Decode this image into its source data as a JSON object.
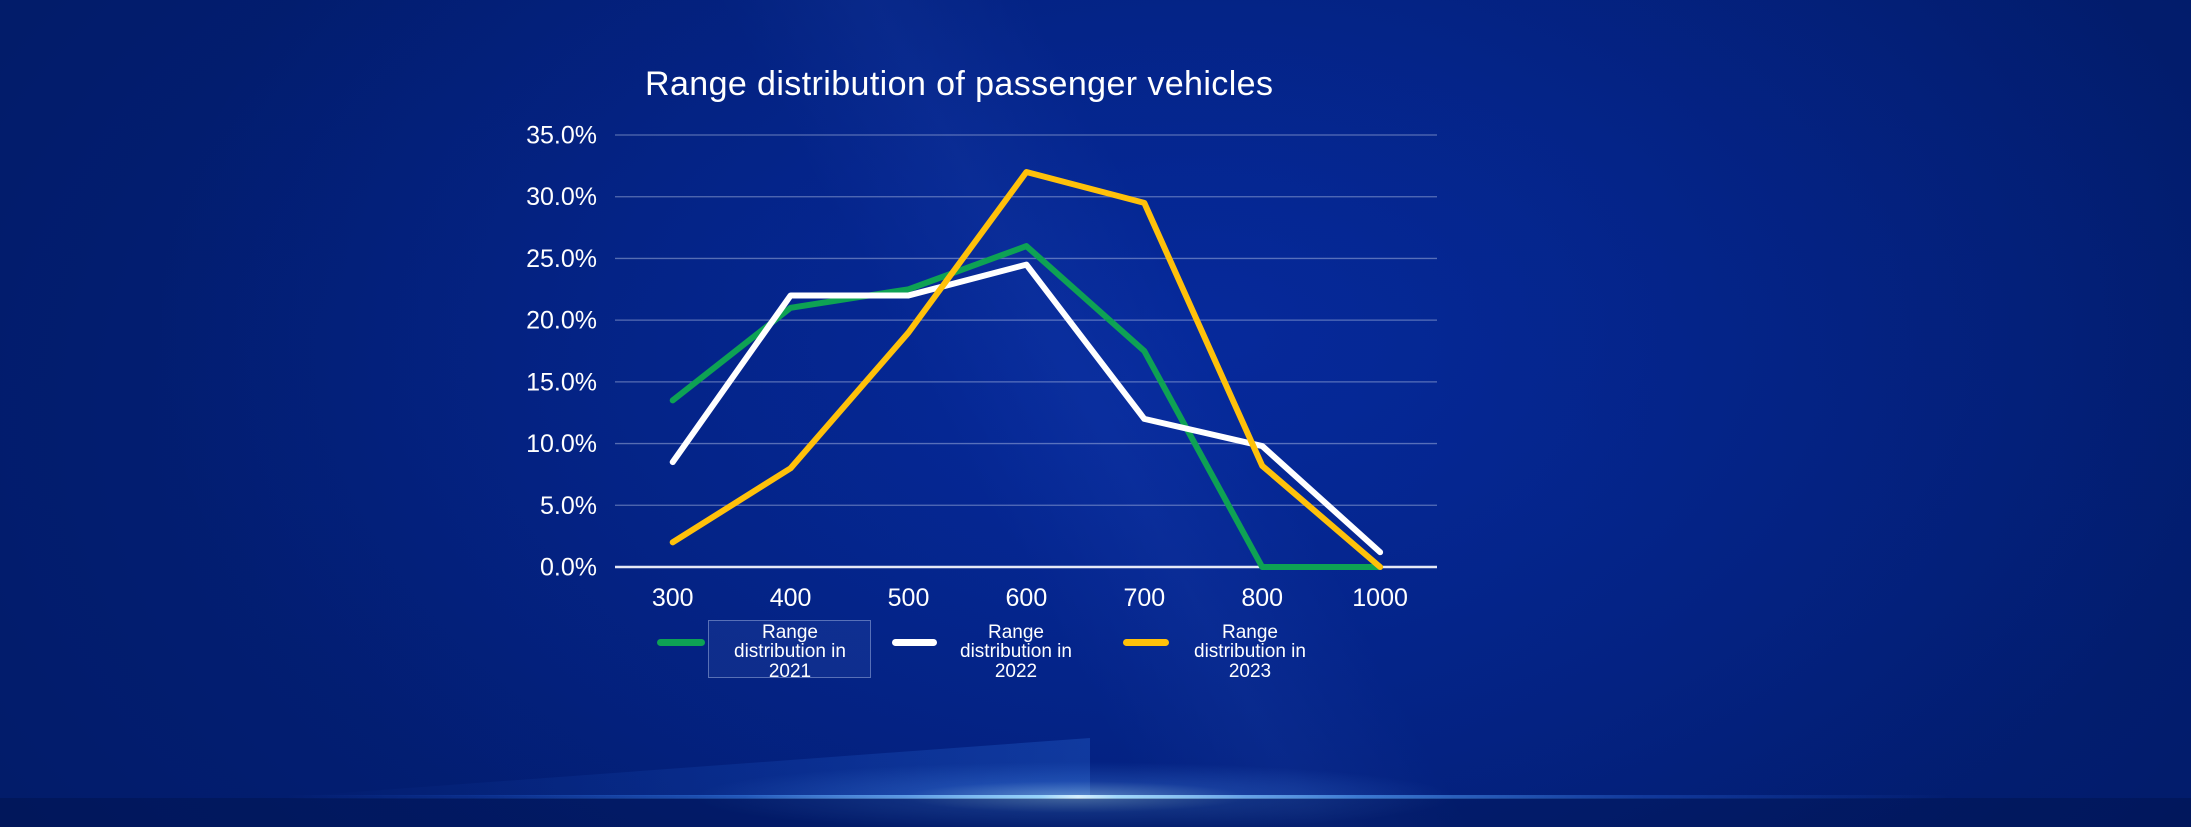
{
  "theme": {
    "background_center": "#03268F",
    "background_corner": "#011550",
    "glow_color": "#FFFFFF",
    "glow_secondary": "#64A8FF",
    "gridline_color": "rgba(210,220,245,0.40)",
    "axis_color": "rgba(248,250,255,0.92)",
    "text_color": "#FFFFFF"
  },
  "chart_data": {
    "type": "line",
    "title": "Range distribution of passenger vehicles",
    "xlabel": "",
    "ylabel": "",
    "categories": [
      "300",
      "400",
      "500",
      "600",
      "700",
      "800",
      "1000"
    ],
    "series": [
      {
        "name": "Range distribution in 2021",
        "color": "#0EA254",
        "values": [
          13.5,
          21,
          22.5,
          26,
          17.5,
          0,
          0
        ]
      },
      {
        "name": "Range distribution in 2022",
        "color": "#FFFFFF",
        "values": [
          8.5,
          22,
          22,
          24.5,
          12,
          9.8,
          1.2
        ]
      },
      {
        "name": "Range distribution in 2023",
        "color": "#FFC10A",
        "values": [
          2,
          8,
          19,
          32,
          29.5,
          8.2,
          0
        ]
      }
    ],
    "ylim": [
      0,
      35
    ],
    "ytick_step": 5,
    "ytick_labels": [
      "0.0%",
      "5.0%",
      "10.0%",
      "15.0%",
      "20.0%",
      "25.0%",
      "30.0%",
      "35.0%"
    ],
    "grid": "horizontal-only",
    "legend_position": "bottom",
    "legend_selected_item": "Range distribution in 2021"
  }
}
